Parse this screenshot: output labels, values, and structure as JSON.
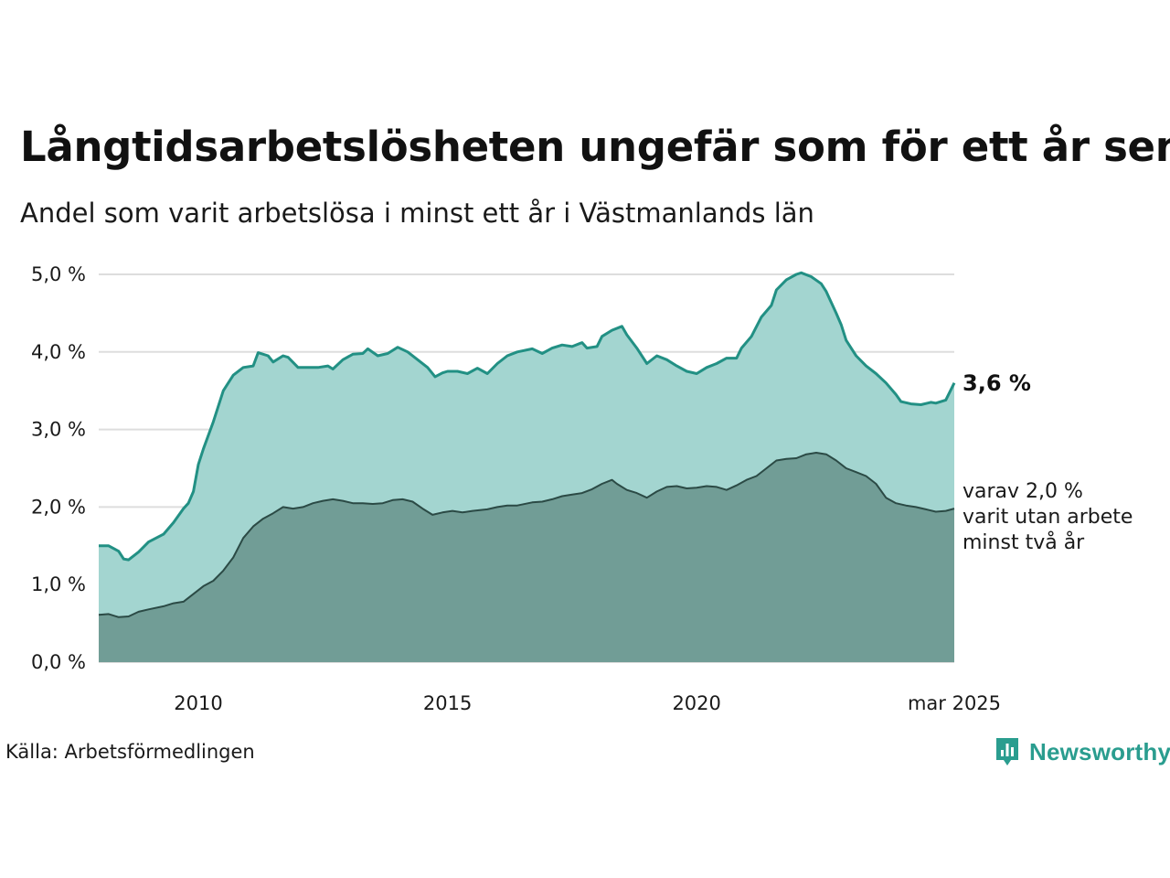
{
  "title": "Långtidsarbetslösheten ungefär som för ett år sen",
  "subtitle": "Andel som varit arbetslösa i minst ett år i Västmanlands län",
  "source": "Källa: Arbetsförmedlingen",
  "brand": {
    "name": "Newsworthy",
    "icon": "bar-chart-speech-bubble-icon",
    "color": "#2a9d8f"
  },
  "colors": {
    "total_fill": "#a3d5d0",
    "total_line": "#229084",
    "long_fill": "#719d96",
    "long_line": "#2b4a45",
    "grid": "#dddddd"
  },
  "chart_data": {
    "type": "area",
    "y_axis": {
      "min": 0,
      "max": 5,
      "ticks": [
        0,
        1,
        2,
        3,
        4,
        5
      ],
      "tick_labels": [
        "0,0 %",
        "1,0 %",
        "2,0 %",
        "3,0 %",
        "4,0 %",
        "5,0 %"
      ]
    },
    "x_axis": {
      "min": 2008.0,
      "max": 2025.17,
      "ticks": [
        2010,
        2015,
        2020,
        2025.17
      ],
      "tick_labels": [
        "2010",
        "2015",
        "2020",
        "mar 2025"
      ]
    },
    "grid": true,
    "end_label": "3,6 %",
    "note_lines": [
      "varav 2,0 %",
      "varit utan arbete",
      "minst två år"
    ],
    "series": [
      {
        "key": "total",
        "points": [
          [
            2008.0,
            1.5
          ],
          [
            2008.2,
            1.5
          ],
          [
            2008.4,
            1.43
          ],
          [
            2008.5,
            1.33
          ],
          [
            2008.6,
            1.32
          ],
          [
            2008.8,
            1.42
          ],
          [
            2009.0,
            1.55
          ],
          [
            2009.3,
            1.65
          ],
          [
            2009.5,
            1.8
          ],
          [
            2009.7,
            1.98
          ],
          [
            2009.8,
            2.05
          ],
          [
            2009.9,
            2.2
          ],
          [
            2010.0,
            2.55
          ],
          [
            2010.1,
            2.75
          ],
          [
            2010.3,
            3.1
          ],
          [
            2010.5,
            3.5
          ],
          [
            2010.7,
            3.7
          ],
          [
            2010.9,
            3.8
          ],
          [
            2011.1,
            3.82
          ],
          [
            2011.2,
            3.99
          ],
          [
            2011.4,
            3.95
          ],
          [
            2011.5,
            3.87
          ],
          [
            2011.7,
            3.95
          ],
          [
            2011.8,
            3.93
          ],
          [
            2012.0,
            3.8
          ],
          [
            2012.2,
            3.8
          ],
          [
            2012.4,
            3.8
          ],
          [
            2012.6,
            3.82
          ],
          [
            2012.7,
            3.78
          ],
          [
            2012.9,
            3.9
          ],
          [
            2013.1,
            3.97
          ],
          [
            2013.3,
            3.98
          ],
          [
            2013.4,
            4.04
          ],
          [
            2013.6,
            3.95
          ],
          [
            2013.8,
            3.98
          ],
          [
            2014.0,
            4.06
          ],
          [
            2014.2,
            4.0
          ],
          [
            2014.4,
            3.9
          ],
          [
            2014.6,
            3.8
          ],
          [
            2014.75,
            3.68
          ],
          [
            2014.9,
            3.73
          ],
          [
            2015.0,
            3.75
          ],
          [
            2015.2,
            3.75
          ],
          [
            2015.4,
            3.72
          ],
          [
            2015.6,
            3.79
          ],
          [
            2015.8,
            3.72
          ],
          [
            2016.0,
            3.85
          ],
          [
            2016.2,
            3.95
          ],
          [
            2016.4,
            4.0
          ],
          [
            2016.7,
            4.04
          ],
          [
            2016.9,
            3.98
          ],
          [
            2017.1,
            4.05
          ],
          [
            2017.3,
            4.09
          ],
          [
            2017.5,
            4.07
          ],
          [
            2017.7,
            4.12
          ],
          [
            2017.8,
            4.05
          ],
          [
            2018.0,
            4.07
          ],
          [
            2018.1,
            4.2
          ],
          [
            2018.3,
            4.28
          ],
          [
            2018.5,
            4.33
          ],
          [
            2018.6,
            4.22
          ],
          [
            2018.8,
            4.05
          ],
          [
            2019.0,
            3.85
          ],
          [
            2019.2,
            3.95
          ],
          [
            2019.4,
            3.9
          ],
          [
            2019.6,
            3.82
          ],
          [
            2019.8,
            3.75
          ],
          [
            2020.0,
            3.72
          ],
          [
            2020.2,
            3.8
          ],
          [
            2020.4,
            3.85
          ],
          [
            2020.6,
            3.92
          ],
          [
            2020.8,
            3.92
          ],
          [
            2020.9,
            4.05
          ],
          [
            2021.1,
            4.2
          ],
          [
            2021.3,
            4.45
          ],
          [
            2021.5,
            4.6
          ],
          [
            2021.6,
            4.8
          ],
          [
            2021.8,
            4.93
          ],
          [
            2022.0,
            5.0
          ],
          [
            2022.1,
            5.02
          ],
          [
            2022.3,
            4.97
          ],
          [
            2022.5,
            4.88
          ],
          [
            2022.6,
            4.78
          ],
          [
            2022.8,
            4.5
          ],
          [
            2022.9,
            4.35
          ],
          [
            2023.0,
            4.15
          ],
          [
            2023.2,
            3.95
          ],
          [
            2023.4,
            3.82
          ],
          [
            2023.6,
            3.72
          ],
          [
            2023.8,
            3.6
          ],
          [
            2024.0,
            3.45
          ],
          [
            2024.1,
            3.36
          ],
          [
            2024.3,
            3.33
          ],
          [
            2024.5,
            3.32
          ],
          [
            2024.7,
            3.35
          ],
          [
            2024.8,
            3.34
          ],
          [
            2025.0,
            3.38
          ],
          [
            2025.17,
            3.6
          ]
        ]
      },
      {
        "key": "long",
        "points": [
          [
            2008.0,
            0.61
          ],
          [
            2008.2,
            0.62
          ],
          [
            2008.4,
            0.58
          ],
          [
            2008.6,
            0.59
          ],
          [
            2008.8,
            0.65
          ],
          [
            2009.0,
            0.68
          ],
          [
            2009.3,
            0.72
          ],
          [
            2009.5,
            0.76
          ],
          [
            2009.7,
            0.78
          ],
          [
            2009.9,
            0.88
          ],
          [
            2010.1,
            0.98
          ],
          [
            2010.3,
            1.05
          ],
          [
            2010.5,
            1.18
          ],
          [
            2010.7,
            1.35
          ],
          [
            2010.9,
            1.6
          ],
          [
            2011.1,
            1.75
          ],
          [
            2011.3,
            1.85
          ],
          [
            2011.5,
            1.92
          ],
          [
            2011.7,
            2.0
          ],
          [
            2011.9,
            1.98
          ],
          [
            2012.1,
            2.0
          ],
          [
            2012.3,
            2.05
          ],
          [
            2012.5,
            2.08
          ],
          [
            2012.7,
            2.1
          ],
          [
            2012.9,
            2.08
          ],
          [
            2013.1,
            2.05
          ],
          [
            2013.3,
            2.05
          ],
          [
            2013.5,
            2.04
          ],
          [
            2013.7,
            2.05
          ],
          [
            2013.9,
            2.09
          ],
          [
            2014.1,
            2.1
          ],
          [
            2014.3,
            2.07
          ],
          [
            2014.5,
            1.98
          ],
          [
            2014.7,
            1.9
          ],
          [
            2014.9,
            1.93
          ],
          [
            2015.1,
            1.95
          ],
          [
            2015.3,
            1.93
          ],
          [
            2015.5,
            1.95
          ],
          [
            2015.8,
            1.97
          ],
          [
            2016.0,
            2.0
          ],
          [
            2016.2,
            2.02
          ],
          [
            2016.4,
            2.02
          ],
          [
            2016.7,
            2.06
          ],
          [
            2016.9,
            2.07
          ],
          [
            2017.1,
            2.1
          ],
          [
            2017.3,
            2.14
          ],
          [
            2017.5,
            2.16
          ],
          [
            2017.7,
            2.18
          ],
          [
            2017.9,
            2.23
          ],
          [
            2018.1,
            2.3
          ],
          [
            2018.3,
            2.35
          ],
          [
            2018.4,
            2.3
          ],
          [
            2018.6,
            2.22
          ],
          [
            2018.8,
            2.18
          ],
          [
            2019.0,
            2.12
          ],
          [
            2019.2,
            2.2
          ],
          [
            2019.4,
            2.26
          ],
          [
            2019.6,
            2.27
          ],
          [
            2019.8,
            2.24
          ],
          [
            2020.0,
            2.25
          ],
          [
            2020.2,
            2.27
          ],
          [
            2020.4,
            2.26
          ],
          [
            2020.6,
            2.22
          ],
          [
            2020.8,
            2.28
          ],
          [
            2021.0,
            2.35
          ],
          [
            2021.2,
            2.4
          ],
          [
            2021.4,
            2.5
          ],
          [
            2021.6,
            2.6
          ],
          [
            2021.8,
            2.62
          ],
          [
            2022.0,
            2.63
          ],
          [
            2022.2,
            2.68
          ],
          [
            2022.4,
            2.7
          ],
          [
            2022.6,
            2.68
          ],
          [
            2022.8,
            2.6
          ],
          [
            2023.0,
            2.5
          ],
          [
            2023.2,
            2.45
          ],
          [
            2023.4,
            2.4
          ],
          [
            2023.6,
            2.3
          ],
          [
            2023.8,
            2.12
          ],
          [
            2024.0,
            2.05
          ],
          [
            2024.2,
            2.02
          ],
          [
            2024.4,
            2.0
          ],
          [
            2024.6,
            1.97
          ],
          [
            2024.8,
            1.94
          ],
          [
            2025.0,
            1.95
          ],
          [
            2025.17,
            1.98
          ]
        ]
      }
    ]
  }
}
